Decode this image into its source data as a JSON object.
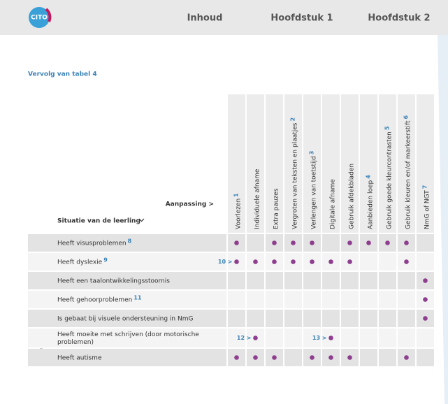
{
  "header": {
    "logo": "CITO",
    "nav": [
      "Inhoud",
      "Hoofdstuk 1",
      "Hoofdstuk 2"
    ]
  },
  "caption": "Vervolg van tabel 4",
  "table": {
    "corner_top": "Aanpassing >",
    "corner_bottom": "Situatie van de leerling",
    "columns": [
      {
        "label": "Voorlezen",
        "note": "1"
      },
      {
        "label": "Individuele afname"
      },
      {
        "label": "Extra pauzes"
      },
      {
        "label": "Vergroten van teksten en plaatjes",
        "note": "2"
      },
      {
        "label": "Verlengen van toetstijd",
        "note": "3"
      },
      {
        "label": "Digitale afname"
      },
      {
        "label": "Gebruik afdekbladen"
      },
      {
        "label": "Aanbieden loep",
        "note": "4"
      },
      {
        "label": "Gebruik goede kleurcontrasten",
        "note": "5"
      },
      {
        "label": "Gebruik kleuren en/of markeerstift",
        "note": "6"
      },
      {
        "label": "NmG of NGT",
        "note": "7"
      }
    ],
    "rows": [
      {
        "label": [
          "Heeft visusproblemen"
        ],
        "note": "8",
        "cells": [
          true,
          false,
          true,
          true,
          true,
          false,
          true,
          true,
          true,
          true,
          false
        ]
      },
      {
        "label": [
          "Heeft dyslexie"
        ],
        "note": "9",
        "cells": [
          true,
          true,
          true,
          true,
          true,
          true,
          true,
          false,
          false,
          true,
          false
        ],
        "cell_notes": {
          "0": "10 >"
        }
      },
      {
        "label": [
          "Heeft een taalontwikkelingsstoornis"
        ],
        "cells": [
          false,
          false,
          false,
          false,
          false,
          false,
          false,
          false,
          false,
          false,
          true
        ]
      },
      {
        "label": [
          "Heeft gehoorproblemen"
        ],
        "note": "11",
        "cells": [
          false,
          false,
          false,
          false,
          false,
          false,
          false,
          false,
          false,
          false,
          true
        ]
      },
      {
        "label": [
          "Is gebaat bij visuele ondersteuning in NmG"
        ],
        "cells": [
          false,
          false,
          false,
          false,
          false,
          false,
          false,
          false,
          false,
          false,
          true
        ]
      },
      {
        "label": [
          "Heeft moeite met schrijven (door motorische",
          "problemen)"
        ],
        "cells": [
          false,
          true,
          false,
          false,
          false,
          true,
          false,
          false,
          false,
          false,
          false
        ],
        "cell_notes": {
          "1": "12 >",
          "5": "13 >"
        }
      },
      {
        "label": [
          "Heeft autisme"
        ],
        "cells": [
          true,
          true,
          true,
          false,
          true,
          true,
          true,
          false,
          false,
          true,
          false
        ]
      }
    ]
  }
}
